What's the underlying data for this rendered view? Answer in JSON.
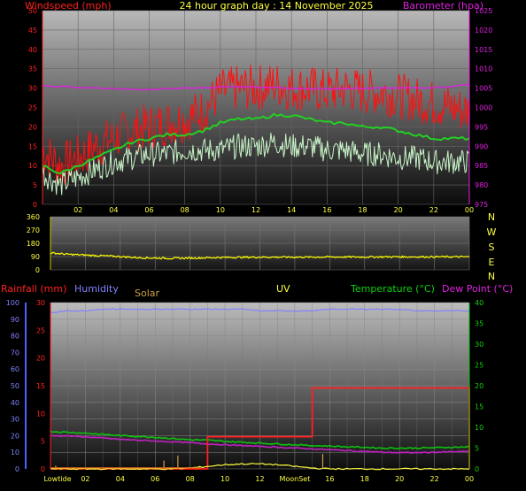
{
  "header": {
    "windspeed_label": "Windspeed (mph)",
    "title": "24 hour graph day : 14 November 2025",
    "barometer_label": "Barometer (hpa)"
  },
  "direction_labels": [
    "N",
    "W",
    "S",
    "E",
    "N"
  ],
  "bottom_header": {
    "rainfall_label": "Rainfall (mm)",
    "humidity_label": "Humidity",
    "solar_label": "Solar",
    "uv_label": "UV",
    "temperature_label": "Temperature (°C)",
    "dewpoint_label": "Dew Point (°C)"
  },
  "x_ticks": [
    "02",
    "04",
    "06",
    "08",
    "10",
    "12",
    "14",
    "16",
    "18",
    "20",
    "22",
    "00"
  ],
  "x_ticks_bottom": [
    "Lowtide",
    "02",
    "04",
    "06",
    "08",
    "10",
    "12",
    "MoonSet",
    "16",
    "18",
    "20",
    "22",
    "00"
  ],
  "colors": {
    "wind_gust": "#ff1010",
    "wind_avg": "#22d022",
    "wind_speed": "#c8f5c8",
    "barometer": "#e020e0",
    "direction": "#ffff00",
    "rainfall": "#ff2020",
    "humidity": "#8080ff",
    "solar": "#ffff40",
    "temperature": "#10c010",
    "dewpoint": "#c020c0"
  },
  "chart_data": [
    {
      "type": "line",
      "title": "24 hour graph day : 14 November 2025",
      "x_hours": [
        0,
        1,
        2,
        3,
        4,
        5,
        6,
        7,
        8,
        9,
        10,
        11,
        12,
        13,
        14,
        15,
        16,
        17,
        18,
        19,
        20,
        21,
        22,
        23,
        24
      ],
      "x_tick_labels": [
        "02",
        "04",
        "06",
        "08",
        "10",
        "12",
        "14",
        "16",
        "18",
        "20",
        "22",
        "00"
      ],
      "left_axis": {
        "label": "Windspeed (mph)",
        "ylim": [
          0,
          50
        ],
        "ticks": [
          0,
          5,
          10,
          15,
          20,
          25,
          30,
          35,
          40,
          45,
          50
        ]
      },
      "right_axis": {
        "label": "Barometer (hpa)",
        "ylim": [
          975,
          1025
        ],
        "ticks": [
          975,
          980,
          985,
          990,
          995,
          1000,
          1005,
          1010,
          1015,
          1020,
          1025
        ]
      },
      "series": [
        {
          "name": "Windspeed (mph)",
          "axis": "left",
          "values": [
            14,
            10,
            12,
            15,
            17,
            19,
            20,
            21,
            22,
            24,
            29,
            30,
            30,
            31,
            30,
            30,
            29,
            30,
            29,
            29,
            28,
            27,
            26,
            25,
            24
          ]
        },
        {
          "axis": "left",
          "values": [
            10,
            8,
            10,
            12,
            14,
            16,
            17,
            18,
            18,
            19,
            21,
            22,
            22,
            23,
            23,
            22,
            21,
            21,
            20,
            20,
            19,
            18,
            17,
            17,
            17
          ]
        },
        {
          "axis": "left",
          "values": [
            8,
            5,
            7,
            9,
            11,
            12,
            13,
            13,
            14,
            14,
            14,
            15,
            15,
            16,
            15,
            15,
            14,
            14,
            13,
            13,
            12,
            12,
            11,
            11,
            11
          ]
        },
        {
          "name": "Barometer (hpa)",
          "axis": "right",
          "values": [
            1005.5,
            1005.4,
            1005.2,
            1005.0,
            1004.8,
            1004.7,
            1004.6,
            1004.8,
            1005.0,
            1005.1,
            1005.3,
            1005.4,
            1005.3,
            1005.2,
            1005.0,
            1004.9,
            1004.8,
            1004.8,
            1004.9,
            1005.0,
            1005.0,
            1005.1,
            1005.2,
            1005.4,
            1006.0
          ]
        }
      ]
    },
    {
      "type": "line",
      "title": "",
      "x_hours": [
        0,
        1,
        2,
        3,
        4,
        5,
        6,
        7,
        8,
        9,
        10,
        11,
        12,
        13,
        14,
        15,
        16,
        17,
        18,
        19,
        20,
        21,
        22,
        23,
        24
      ],
      "y_axis": {
        "ylim": [
          0,
          360
        ],
        "ticks": [
          0,
          90,
          180,
          270,
          360
        ]
      },
      "series": [
        {
          "values": [
            115,
            105,
            100,
            95,
            90,
            82,
            80,
            78,
            80,
            82,
            84,
            85,
            86,
            86,
            86,
            86,
            87,
            87,
            87,
            88,
            88,
            88,
            88,
            88,
            88
          ]
        }
      ]
    },
    {
      "type": "line",
      "title": "",
      "x_hours": [
        0,
        1,
        2,
        3,
        4,
        5,
        6,
        7,
        8,
        9,
        10,
        11,
        12,
        13,
        14,
        15,
        16,
        17,
        18,
        19,
        20,
        21,
        22,
        23,
        24
      ],
      "x_tick_labels": [
        "Lowtide",
        "02",
        "04",
        "06",
        "08",
        "10",
        "12",
        "MoonSet",
        "16",
        "18",
        "20",
        "22",
        "00"
      ],
      "left_axis": {
        "label": "Humidity",
        "ylim": [
          0,
          100
        ],
        "ticks": [
          0,
          10,
          20,
          30,
          40,
          50,
          60,
          70,
          80,
          90,
          100
        ]
      },
      "rain_axis": {
        "label": "Rainfall (mm)",
        "ylim": [
          0,
          30
        ],
        "ticks": [
          0,
          5,
          10,
          15,
          20,
          25,
          30
        ]
      },
      "right_axis": {
        "label": "Temperature (°C)",
        "ylim": [
          0,
          40
        ],
        "ticks": [
          0,
          5,
          10,
          15,
          20,
          25,
          30,
          35,
          40
        ]
      },
      "series": [
        {
          "name": "Humidity",
          "axis": "left",
          "values": [
            94,
            95,
            95,
            96,
            96,
            96,
            96,
            96,
            96,
            96,
            96,
            96,
            95,
            95,
            95,
            95,
            96,
            96,
            96,
            96,
            96,
            95,
            95,
            95,
            95
          ]
        },
        {
          "name": "Rainfall (mm)",
          "axis": "rain",
          "values": [
            0,
            0,
            0,
            0,
            0,
            0,
            0,
            0,
            0,
            5.8,
            5.8,
            5.8,
            5.8,
            5.8,
            5.8,
            14.6,
            14.6,
            14.6,
            14.6,
            14.6,
            14.6,
            14.6,
            14.6,
            14.6,
            14.6
          ]
        },
        {
          "name": "Temperature (°C)",
          "axis": "right",
          "values": [
            9.0,
            8.8,
            8.6,
            8.3,
            8.0,
            7.8,
            7.6,
            7.3,
            7.0,
            6.9,
            6.6,
            6.4,
            6.2,
            6.0,
            5.8,
            5.6,
            5.5,
            5.3,
            5.2,
            5.0,
            5.0,
            5.0,
            5.1,
            5.2,
            5.3
          ]
        },
        {
          "name": "Dew Point (°C)",
          "axis": "right",
          "values": [
            8.0,
            7.9,
            7.7,
            7.4,
            7.1,
            6.9,
            6.7,
            6.5,
            6.3,
            6.0,
            5.8,
            5.6,
            5.4,
            5.2,
            5.0,
            4.8,
            4.6,
            4.4,
            4.2,
            4.0,
            3.9,
            3.9,
            4.0,
            4.1,
            4.2
          ]
        },
        {
          "name": "Solar",
          "axis": "left",
          "values": [
            0,
            0,
            0,
            0,
            0,
            0,
            0,
            0,
            0.5,
            1.5,
            2.5,
            3,
            3,
            2.5,
            1.5,
            0.5,
            0,
            0,
            0,
            0,
            0,
            0,
            0,
            0,
            0
          ]
        }
      ]
    }
  ]
}
